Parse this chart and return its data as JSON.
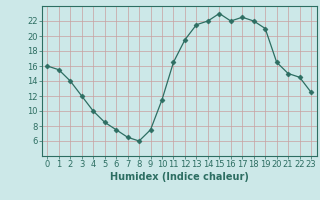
{
  "x": [
    0,
    1,
    2,
    3,
    4,
    5,
    6,
    7,
    8,
    9,
    10,
    11,
    12,
    13,
    14,
    15,
    16,
    17,
    18,
    19,
    20,
    21,
    22,
    23
  ],
  "y": [
    16,
    15.5,
    14,
    12,
    10,
    8.5,
    7.5,
    6.5,
    6,
    7.5,
    11.5,
    16.5,
    19.5,
    21.5,
    22,
    23,
    22,
    22.5,
    22,
    21,
    16.5,
    15,
    14.5,
    12.5
  ],
  "line_color": "#2d6e62",
  "marker": "D",
  "marker_size": 2.5,
  "bg_color": "#cce8e8",
  "grid_color": "#c8a0a0",
  "xlabel": "Humidex (Indice chaleur)",
  "ylim": [
    4,
    24
  ],
  "xlim": [
    -0.5,
    23.5
  ],
  "yticks": [
    6,
    8,
    10,
    12,
    14,
    16,
    18,
    20,
    22
  ],
  "xticks": [
    0,
    1,
    2,
    3,
    4,
    5,
    6,
    7,
    8,
    9,
    10,
    11,
    12,
    13,
    14,
    15,
    16,
    17,
    18,
    19,
    20,
    21,
    22,
    23
  ],
  "axis_color": "#2d6e62",
  "tick_color": "#2d6e62",
  "label_fontsize": 7,
  "tick_fontsize": 6
}
